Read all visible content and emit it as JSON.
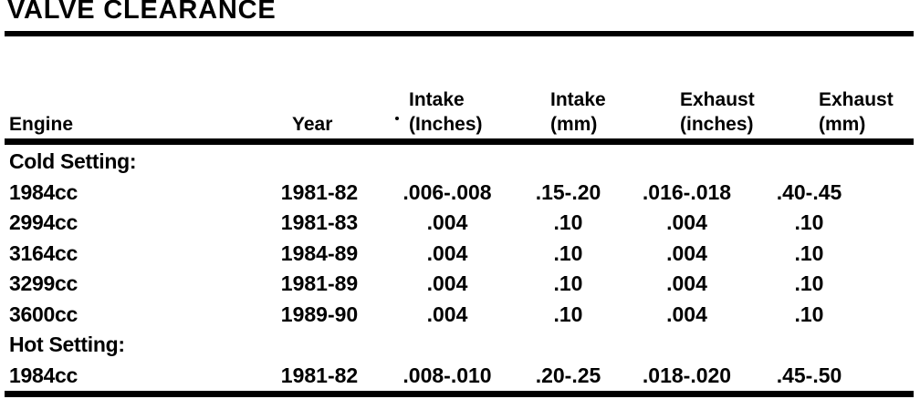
{
  "title": "VALVE CLEARANCE",
  "colors": {
    "ink": "#000000",
    "paper": "#ffffff"
  },
  "table": {
    "headers": [
      {
        "line1": "Engine",
        "line2": ""
      },
      {
        "line1": "Year",
        "line2": ""
      },
      {
        "line1": "Intake",
        "line2": "(Inches)"
      },
      {
        "line1": "Intake",
        "line2": "(mm)"
      },
      {
        "line1": "Exhaust",
        "line2": "(inches)"
      },
      {
        "line1": "Exhaust",
        "line2": "(mm)"
      }
    ],
    "rows": [
      {
        "type": "section",
        "engine": "Cold Setting:"
      },
      {
        "type": "data",
        "engine": "1984cc",
        "year": "1981-82",
        "intake_in": ".006-.008",
        "intake_mm": ".15-.20",
        "exhaust_in": ".016-.018",
        "exhaust_mm": ".40-.45"
      },
      {
        "type": "data",
        "engine": "2994cc",
        "year": "1981-83",
        "intake_in": ".004",
        "intake_mm": ".10",
        "exhaust_in": ".004",
        "exhaust_mm": ".10"
      },
      {
        "type": "data",
        "engine": "3164cc",
        "year": "1984-89",
        "intake_in": ".004",
        "intake_mm": ".10",
        "exhaust_in": ".004",
        "exhaust_mm": ".10"
      },
      {
        "type": "data",
        "engine": "3299cc",
        "year": "1981-89",
        "intake_in": ".004",
        "intake_mm": ".10",
        "exhaust_in": ".004",
        "exhaust_mm": ".10"
      },
      {
        "type": "data",
        "engine": "3600cc",
        "year": "1989-90",
        "intake_in": ".004",
        "intake_mm": ".10",
        "exhaust_in": ".004",
        "exhaust_mm": ".10"
      },
      {
        "type": "section",
        "engine": "Hot Setting:"
      },
      {
        "type": "data",
        "engine": "1984cc",
        "year": "1981-82",
        "intake_in": ".008-.010",
        "intake_mm": ".20-.25",
        "exhaust_in": ".018-.020",
        "exhaust_mm": ".45-.50"
      }
    ]
  }
}
